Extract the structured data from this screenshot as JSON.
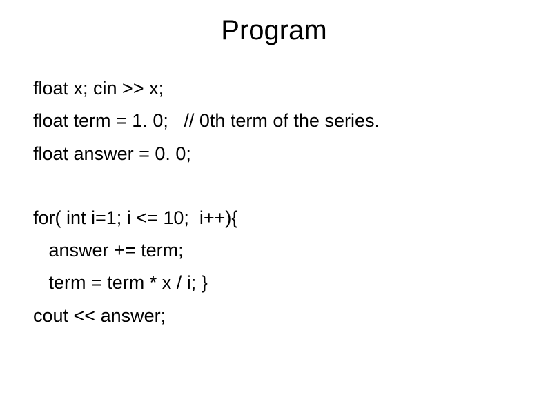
{
  "title": "Program",
  "code": {
    "l1": "float x; cin >> x;",
    "l2": "float term = 1. 0;   // 0th term of the series.",
    "l3": "float answer = 0. 0;",
    "l4": "for( int i=1; i <= 10;  i++){",
    "l5": "   answer += term;",
    "l6": "   term = term * x / i; }",
    "l7": "cout << answer;"
  },
  "colors": {
    "background": "#ffffff",
    "text": "#000000"
  },
  "fontsize": {
    "title": 40,
    "body": 27
  }
}
